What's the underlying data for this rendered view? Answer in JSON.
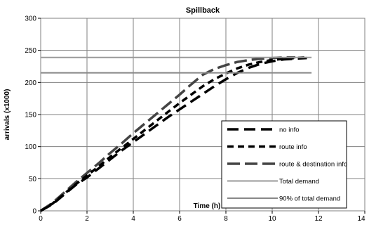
{
  "chart_data": {
    "type": "line",
    "title": "Spillback",
    "xlabel": "Time (h)",
    "ylabel": "arrivals (x1000)",
    "xlim": [
      0,
      14
    ],
    "ylim": [
      0,
      300
    ],
    "xticks": [
      0,
      2,
      4,
      6,
      8,
      10,
      12,
      14
    ],
    "yticks": [
      0,
      50,
      100,
      150,
      200,
      250,
      300
    ],
    "grid": true,
    "legend_position": "bottom-right",
    "series": [
      {
        "name": "no info",
        "color": "#000000",
        "style": "dashed",
        "x": [
          0,
          0.5,
          1,
          1.5,
          2,
          2.5,
          3,
          3.5,
          4,
          4.5,
          5,
          5.5,
          6,
          6.5,
          7,
          7.5,
          8,
          8.5,
          9,
          9.5,
          10,
          10.5,
          11,
          11.5
        ],
        "y": [
          0,
          10,
          25,
          40,
          52,
          66,
          80,
          94,
          107,
          120,
          133,
          146,
          158,
          170,
          182,
          194,
          205,
          215,
          223,
          229,
          233,
          236,
          237,
          238
        ]
      },
      {
        "name": "route info",
        "color": "#000000",
        "style": "dashed",
        "x": [
          0,
          0.5,
          1,
          1.5,
          2,
          2.5,
          3,
          3.5,
          4,
          4.5,
          5,
          5.5,
          6,
          6.5,
          7,
          7.5,
          8,
          8.5,
          9,
          9.5,
          10,
          10.5,
          11,
          11.5
        ],
        "y": [
          0,
          11,
          26,
          41,
          55,
          69,
          84,
          98,
          112,
          126,
          140,
          154,
          168,
          181,
          194,
          205,
          214,
          222,
          228,
          232,
          235,
          237,
          238,
          239
        ]
      },
      {
        "name": "route & destination info",
        "color": "#444444",
        "style": "dashed",
        "x": [
          0,
          0.5,
          1,
          1.5,
          2,
          2.5,
          3,
          3.5,
          4,
          4.5,
          5,
          5.5,
          6,
          6.5,
          7,
          7.5,
          8,
          8.5,
          9,
          9.5,
          10,
          10.5,
          11
        ],
        "y": [
          0,
          12,
          28,
          44,
          59,
          74,
          90,
          105,
          121,
          136,
          151,
          166,
          181,
          197,
          212,
          221,
          227,
          232,
          235,
          237,
          238,
          239,
          239
        ]
      },
      {
        "name": "Total demand",
        "color": "#999999",
        "style": "solid",
        "x": [
          0,
          11.7
        ],
        "y": [
          239,
          239
        ]
      },
      {
        "name": "90% of total demand",
        "color": "#888888",
        "style": "solid",
        "x": [
          0,
          11.7
        ],
        "y": [
          215,
          215
        ]
      }
    ]
  }
}
